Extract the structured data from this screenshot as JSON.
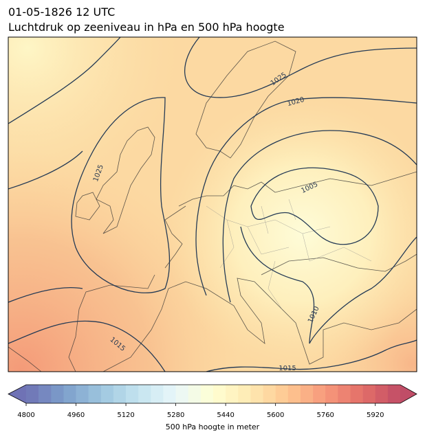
{
  "header": {
    "title": "01-05-1826 12 UTC",
    "subtitle": "Luchtdruk op zeeniveau in hPa en 500 hPa hoogte"
  },
  "map": {
    "contour_labels": [
      "1025",
      "1020",
      "1005",
      "1025",
      "1015",
      "1010",
      "1015"
    ]
  },
  "colorbar": {
    "label": "500 hPa hoogte in meter",
    "min": 4800,
    "max": 6000,
    "step": 40,
    "ticks": [
      4800,
      4960,
      5120,
      5280,
      5440,
      5600,
      5760,
      5920
    ],
    "colors": [
      "#313695",
      "#4575b4",
      "#74add1",
      "#abd9e9",
      "#e0f3f8",
      "#ffffbf",
      "#fee090",
      "#fdae61",
      "#f46d43",
      "#d73027",
      "#a50026"
    ]
  }
}
